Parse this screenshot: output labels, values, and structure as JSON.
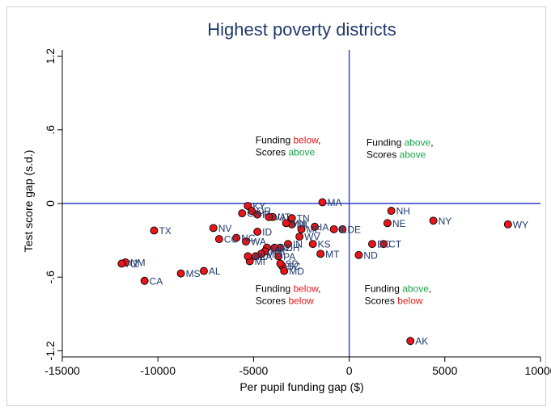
{
  "chart_data": {
    "type": "scatter",
    "title": "Highest poverty districts",
    "xlabel": "Per pupil funding gap ($)",
    "ylabel": "Test score gap (s.d.)",
    "xlim": [
      -15000,
      10000
    ],
    "ylim": [
      -1.25,
      1.25
    ],
    "x_ticks": [
      -15000,
      -10000,
      -5000,
      0,
      5000,
      10000
    ],
    "y_ticks": [
      -1.2,
      -0.6,
      0,
      0.6,
      1.2
    ],
    "x_tick_labels": [
      "-15000",
      "-10000",
      "-5000",
      "0",
      "5000",
      "10000"
    ],
    "y_tick_labels": [
      "-1.2",
      "-.6",
      "0",
      ".6",
      "1.2"
    ],
    "grid": false,
    "reference_lines": {
      "x": 0,
      "y": 0,
      "color": "#2a3fcf"
    },
    "marker_color": "#e8161a",
    "points": [
      {
        "label": "WY",
        "x": 8300,
        "y": -0.17
      },
      {
        "label": "NY",
        "x": 4400,
        "y": -0.14
      },
      {
        "label": "NH",
        "x": 2200,
        "y": -0.06
      },
      {
        "label": "NE",
        "x": 2000,
        "y": -0.16
      },
      {
        "label": "CT",
        "x": 1800,
        "y": -0.33
      },
      {
        "label": "DC",
        "x": 1200,
        "y": -0.33
      },
      {
        "label": "ND",
        "x": 500,
        "y": -0.42
      },
      {
        "label": "DE",
        "x": -350,
        "y": -0.21
      },
      {
        "label": "IL",
        "x": -800,
        "y": -0.21
      },
      {
        "label": "MA",
        "x": -1400,
        "y": 0.01
      },
      {
        "label": "MT",
        "x": -1500,
        "y": -0.41
      },
      {
        "label": "KS",
        "x": -1900,
        "y": -0.33
      },
      {
        "label": "IA",
        "x": -1800,
        "y": -0.19
      },
      {
        "label": "ME",
        "x": -2500,
        "y": -0.21
      },
      {
        "label": "WV",
        "x": -2600,
        "y": -0.27
      },
      {
        "label": "MI",
        "x": -3000,
        "y": -0.17
      },
      {
        "label": "TN",
        "x": -3000,
        "y": -0.12
      },
      {
        "label": "MN",
        "x": -3300,
        "y": -0.16
      },
      {
        "label": "SC",
        "x": -3500,
        "y": -0.51
      },
      {
        "label": "MD",
        "x": -3400,
        "y": -0.55
      },
      {
        "label": "SD",
        "x": -3600,
        "y": -0.49
      },
      {
        "label": "OH",
        "x": -3600,
        "y": -0.36
      },
      {
        "label": "IN",
        "x": -3200,
        "y": -0.33
      },
      {
        "label": "AZ",
        "x": -3900,
        "y": -0.36
      },
      {
        "label": "PA",
        "x": -3700,
        "y": -0.43
      },
      {
        "label": "UT",
        "x": -4000,
        "y": -0.11
      },
      {
        "label": "VA",
        "x": -4200,
        "y": -0.11
      },
      {
        "label": "RI",
        "x": -4300,
        "y": -0.36
      },
      {
        "label": "NM2",
        "x": -4400,
        "y": -0.39
      },
      {
        "label": "MO",
        "x": -4600,
        "y": -0.41
      },
      {
        "label": "FL",
        "x": -4800,
        "y": -0.09
      },
      {
        "label": "ID",
        "x": -4800,
        "y": -0.23
      },
      {
        "label": "WA",
        "x": -5400,
        "y": -0.31
      },
      {
        "label": "LA",
        "x": -4900,
        "y": -0.43
      },
      {
        "label": "MI2",
        "x": -5200,
        "y": -0.47
      },
      {
        "label": "KY",
        "x": -5300,
        "y": -0.02
      },
      {
        "label": "OR",
        "x": -5100,
        "y": -0.06
      },
      {
        "label": "AR",
        "x": -5300,
        "y": -0.43
      },
      {
        "label": "OK",
        "x": -5600,
        "y": -0.08
      },
      {
        "label": "NC",
        "x": -5900,
        "y": -0.28
      },
      {
        "label": "CO",
        "x": -6800,
        "y": -0.29
      },
      {
        "label": "NV",
        "x": -7100,
        "y": -0.2
      },
      {
        "label": "AL",
        "x": -7600,
        "y": -0.55
      },
      {
        "label": "MS",
        "x": -8800,
        "y": -0.57
      },
      {
        "label": "TX",
        "x": -10200,
        "y": -0.22
      },
      {
        "label": "CA",
        "x": -10700,
        "y": -0.63
      },
      {
        "label": "NM",
        "x": -11700,
        "y": -0.48
      },
      {
        "label": "AZ2",
        "x": -11900,
        "y": -0.49
      },
      {
        "label": "AK",
        "x": 3200,
        "y": -1.12
      }
    ],
    "point_labels": [
      {
        "text": "WY",
        "x": 8300,
        "y": -0.17
      },
      {
        "text": "NY",
        "x": 4400,
        "y": -0.14
      },
      {
        "text": "NH",
        "x": 2200,
        "y": -0.06
      },
      {
        "text": "NE",
        "x": 2000,
        "y": -0.16
      },
      {
        "text": "CT",
        "x": 1800,
        "y": -0.33
      },
      {
        "text": "DC",
        "x": 1200,
        "y": -0.33
      },
      {
        "text": "ND",
        "x": 500,
        "y": -0.42
      },
      {
        "text": "DE",
        "x": -350,
        "y": -0.21
      },
      {
        "text": "IL",
        "x": -800,
        "y": -0.21
      },
      {
        "text": "MA",
        "x": -1400,
        "y": 0.01
      },
      {
        "text": "MT",
        "x": -1500,
        "y": -0.41
      },
      {
        "text": "KS",
        "x": -1900,
        "y": -0.33
      },
      {
        "text": "IA",
        "x": -1800,
        "y": -0.19
      },
      {
        "text": "ME",
        "x": -2500,
        "y": -0.21
      },
      {
        "text": "WV",
        "x": -2600,
        "y": -0.27
      },
      {
        "text": "MI",
        "x": -3000,
        "y": -0.17
      },
      {
        "text": "TN",
        "x": -3000,
        "y": -0.12
      },
      {
        "text": "MN",
        "x": -3300,
        "y": -0.16
      },
      {
        "text": "SC",
        "x": -3500,
        "y": -0.51
      },
      {
        "text": "MD",
        "x": -3400,
        "y": -0.55
      },
      {
        "text": "SD",
        "x": -3600,
        "y": -0.49
      },
      {
        "text": "OH",
        "x": -3600,
        "y": -0.36
      },
      {
        "text": "IN",
        "x": -3200,
        "y": -0.33
      },
      {
        "text": "AZ",
        "x": -3900,
        "y": -0.36
      },
      {
        "text": "PA",
        "x": -3700,
        "y": -0.43
      },
      {
        "text": "UT",
        "x": -4000,
        "y": -0.11
      },
      {
        "text": "VA",
        "x": -4200,
        "y": -0.11
      },
      {
        "text": "RI",
        "x": -4300,
        "y": -0.36
      },
      {
        "text": "NM",
        "x": -4400,
        "y": -0.39
      },
      {
        "text": "MO",
        "x": -4600,
        "y": -0.41
      },
      {
        "text": "FL",
        "x": -4800,
        "y": -0.09
      },
      {
        "text": "ID",
        "x": -4800,
        "y": -0.23
      },
      {
        "text": "WA",
        "x": -5400,
        "y": -0.31
      },
      {
        "text": "LA",
        "x": -4900,
        "y": -0.43
      },
      {
        "text": "MI",
        "x": -5200,
        "y": -0.47
      },
      {
        "text": "KY",
        "x": -5300,
        "y": -0.02
      },
      {
        "text": "OR",
        "x": -5100,
        "y": -0.06
      },
      {
        "text": "AR",
        "x": -5300,
        "y": -0.43
      },
      {
        "text": "OK",
        "x": -5600,
        "y": -0.08
      },
      {
        "text": "NC",
        "x": -5900,
        "y": -0.28
      },
      {
        "text": "CO",
        "x": -6800,
        "y": -0.29
      },
      {
        "text": "NV",
        "x": -7100,
        "y": -0.2
      },
      {
        "text": "AL",
        "x": -7600,
        "y": -0.55
      },
      {
        "text": "MS",
        "x": -8800,
        "y": -0.57
      },
      {
        "text": "TX",
        "x": -10200,
        "y": -0.22
      },
      {
        "text": "CA",
        "x": -10700,
        "y": -0.63
      },
      {
        "text": "NM",
        "x": -11700,
        "y": -0.48
      },
      {
        "text": "AZ",
        "x": -11900,
        "y": -0.49
      },
      {
        "text": "AK",
        "x": 3200,
        "y": -1.12
      }
    ],
    "annotations": [
      {
        "id": "tl",
        "line1": [
          "Funding ",
          "below",
          ","
        ],
        "line1_colors": [
          "",
          "#e41a1c",
          ""
        ],
        "line2": [
          "Scores ",
          "above"
        ],
        "line2_colors": [
          "",
          "#1aa34a"
        ],
        "x": -4900,
        "y": 0.49
      },
      {
        "id": "tr",
        "line1": [
          "Funding ",
          "above",
          ","
        ],
        "line1_colors": [
          "",
          "#1aa34a",
          ""
        ],
        "line2": [
          "Scores ",
          "above"
        ],
        "line2_colors": [
          "",
          "#1aa34a"
        ],
        "x": 900,
        "y": 0.47
      },
      {
        "id": "bl",
        "line1": [
          "Funding ",
          "below",
          ","
        ],
        "line1_colors": [
          "",
          "#e41a1c",
          ""
        ],
        "line2": [
          "Scores ",
          "below"
        ],
        "line2_colors": [
          "",
          "#e41a1c"
        ],
        "x": -4900,
        "y": -0.72
      },
      {
        "id": "br",
        "line1": [
          "Funding ",
          "above",
          ","
        ],
        "line1_colors": [
          "",
          "#1aa34a",
          ""
        ],
        "line2": [
          "Scores ",
          "below"
        ],
        "line2_colors": [
          "",
          "#e41a1c"
        ],
        "x": 800,
        "y": -0.72
      }
    ]
  }
}
